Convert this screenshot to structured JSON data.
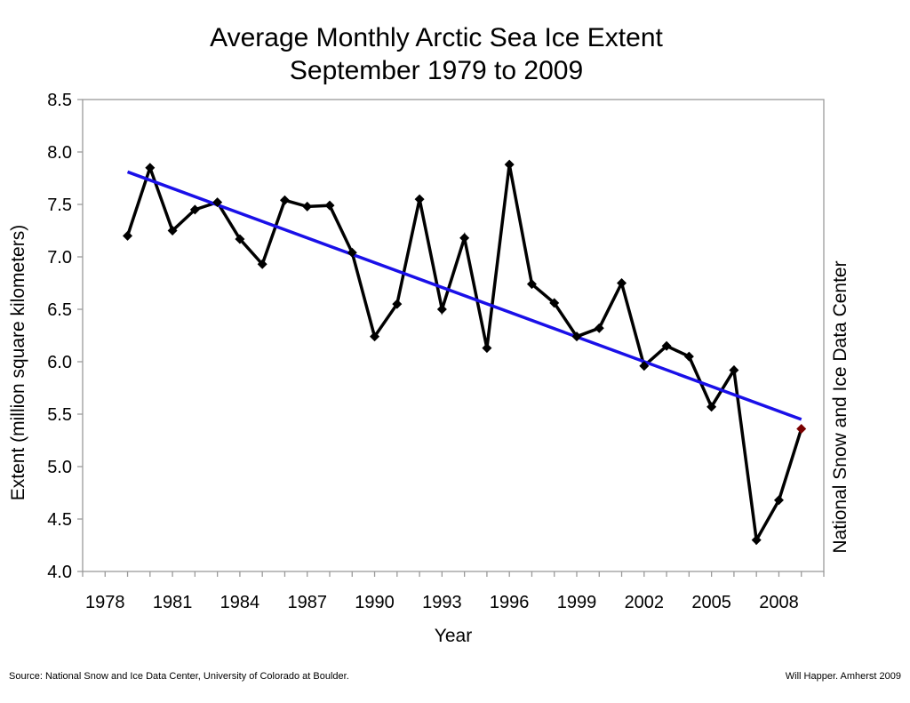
{
  "chart_data": {
    "type": "line",
    "title": "Average Monthly Arctic Sea Ice Extent",
    "subtitle": "September 1979 to 2009",
    "xlabel": "Year",
    "ylabel": "Extent (million square kilometers)",
    "side_label": "National Snow and Ice Data Center",
    "xlim": [
      1977,
      2010
    ],
    "ylim": [
      4.0,
      8.5
    ],
    "xticks": [
      1978,
      1981,
      1984,
      1987,
      1990,
      1993,
      1996,
      1999,
      2002,
      2005,
      2008
    ],
    "yticks": [
      4.0,
      4.5,
      5.0,
      5.5,
      6.0,
      6.5,
      7.0,
      7.5,
      8.0,
      8.5
    ],
    "grid": false,
    "series": [
      {
        "color": "#000000",
        "x": [
          1979,
          1980,
          1981,
          1982,
          1983,
          1984,
          1985,
          1986,
          1987,
          1988,
          1989,
          1990,
          1991,
          1992,
          1993,
          1994,
          1995,
          1996,
          1997,
          1998,
          1999,
          2000,
          2001,
          2002,
          2003,
          2004,
          2005,
          2006,
          2007,
          2008,
          2009
        ],
        "values": [
          7.2,
          7.85,
          7.25,
          7.45,
          7.52,
          7.17,
          6.93,
          7.54,
          7.48,
          7.49,
          7.04,
          6.24,
          6.55,
          7.55,
          6.5,
          7.18,
          6.13,
          7.88,
          6.74,
          6.56,
          6.24,
          6.32,
          6.75,
          5.96,
          6.15,
          6.05,
          5.57,
          5.92,
          4.3,
          4.68,
          5.36
        ]
      }
    ],
    "highlight": {
      "x": 2009,
      "y": 5.36,
      "color": "#7a0000"
    },
    "trend": {
      "x": [
        1979,
        2009
      ],
      "values": [
        7.81,
        5.45
      ],
      "color": "#1a10e8"
    }
  },
  "footer": {
    "source": "Source: National Snow and Ice Data Center, University of Colorado at Boulder.",
    "credit": "Will Happer. Amherst 2009"
  }
}
